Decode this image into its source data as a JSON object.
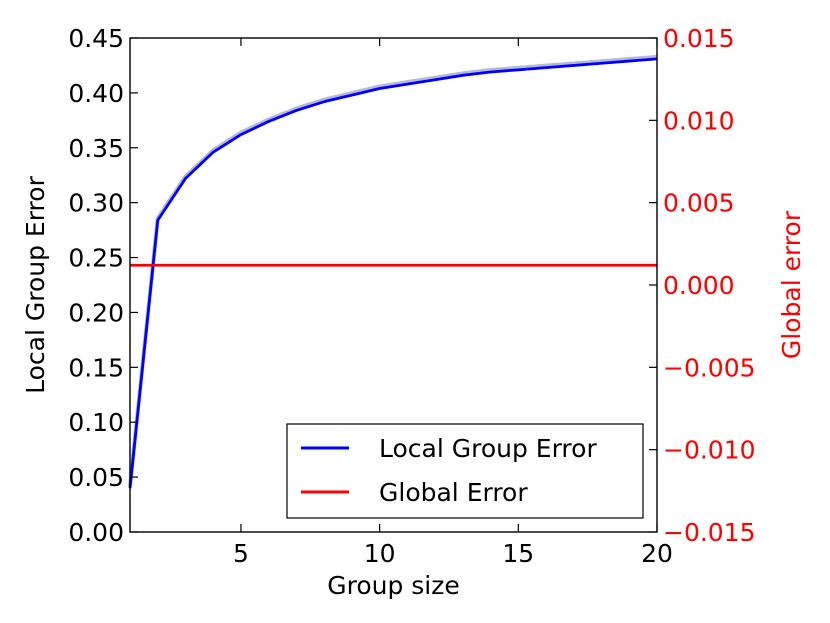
{
  "chart_data": {
    "type": "line",
    "xlabel": "Group size",
    "ylabel_left": "Local Group Error",
    "ylabel_right": "Global error",
    "xlim": [
      1,
      20
    ],
    "ylim_left": [
      0.0,
      0.45
    ],
    "ylim_right": [
      -0.015,
      0.015
    ],
    "x_ticks": [
      5,
      10,
      15,
      20
    ],
    "y_ticks_left": [
      0.0,
      0.05,
      0.1,
      0.15,
      0.2,
      0.25,
      0.3,
      0.35,
      0.4,
      0.45
    ],
    "y_ticks_left_labels": [
      "0.00",
      "0.05",
      "0.10",
      "0.15",
      "0.20",
      "0.25",
      "0.30",
      "0.35",
      "0.40",
      "0.45"
    ],
    "y_ticks_right": [
      -0.015,
      -0.01,
      -0.005,
      0.0,
      0.005,
      0.01,
      0.015
    ],
    "y_ticks_right_labels": [
      "−0.015",
      "−0.010",
      "−0.005",
      "0.000",
      "0.005",
      "0.010",
      "0.015"
    ],
    "legend_position": "lower-right",
    "series": [
      {
        "name": "Local Group Error",
        "axis": "left",
        "color": "#0000ff",
        "band_color": "#9999cc",
        "x": [
          1,
          2,
          3,
          4,
          5,
          6,
          7,
          8,
          9,
          10,
          11,
          12,
          13,
          14,
          15,
          16,
          17,
          18,
          19,
          20
        ],
        "values": [
          0.04,
          0.284,
          0.322,
          0.346,
          0.362,
          0.374,
          0.384,
          0.392,
          0.398,
          0.404,
          0.408,
          0.412,
          0.416,
          0.419,
          0.421,
          0.423,
          0.425,
          0.427,
          0.429,
          0.431
        ]
      },
      {
        "name": "Global Error",
        "axis": "right",
        "color": "#ff0000",
        "x": [
          1,
          20
        ],
        "values": [
          0.0012,
          0.0012
        ]
      }
    ]
  }
}
